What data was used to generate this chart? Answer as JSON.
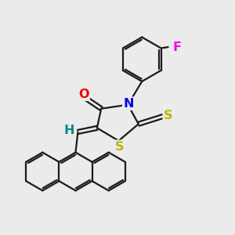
{
  "bg_color": "#ebebeb",
  "bond_color": "#1a1a1a",
  "atom_colors": {
    "N": "#0000ee",
    "O": "#ee0000",
    "S": "#b8b800",
    "F": "#ee00ee",
    "H": "#008888"
  },
  "lw": 1.6,
  "figsize": [
    3.0,
    3.0
  ],
  "dpi": 100
}
